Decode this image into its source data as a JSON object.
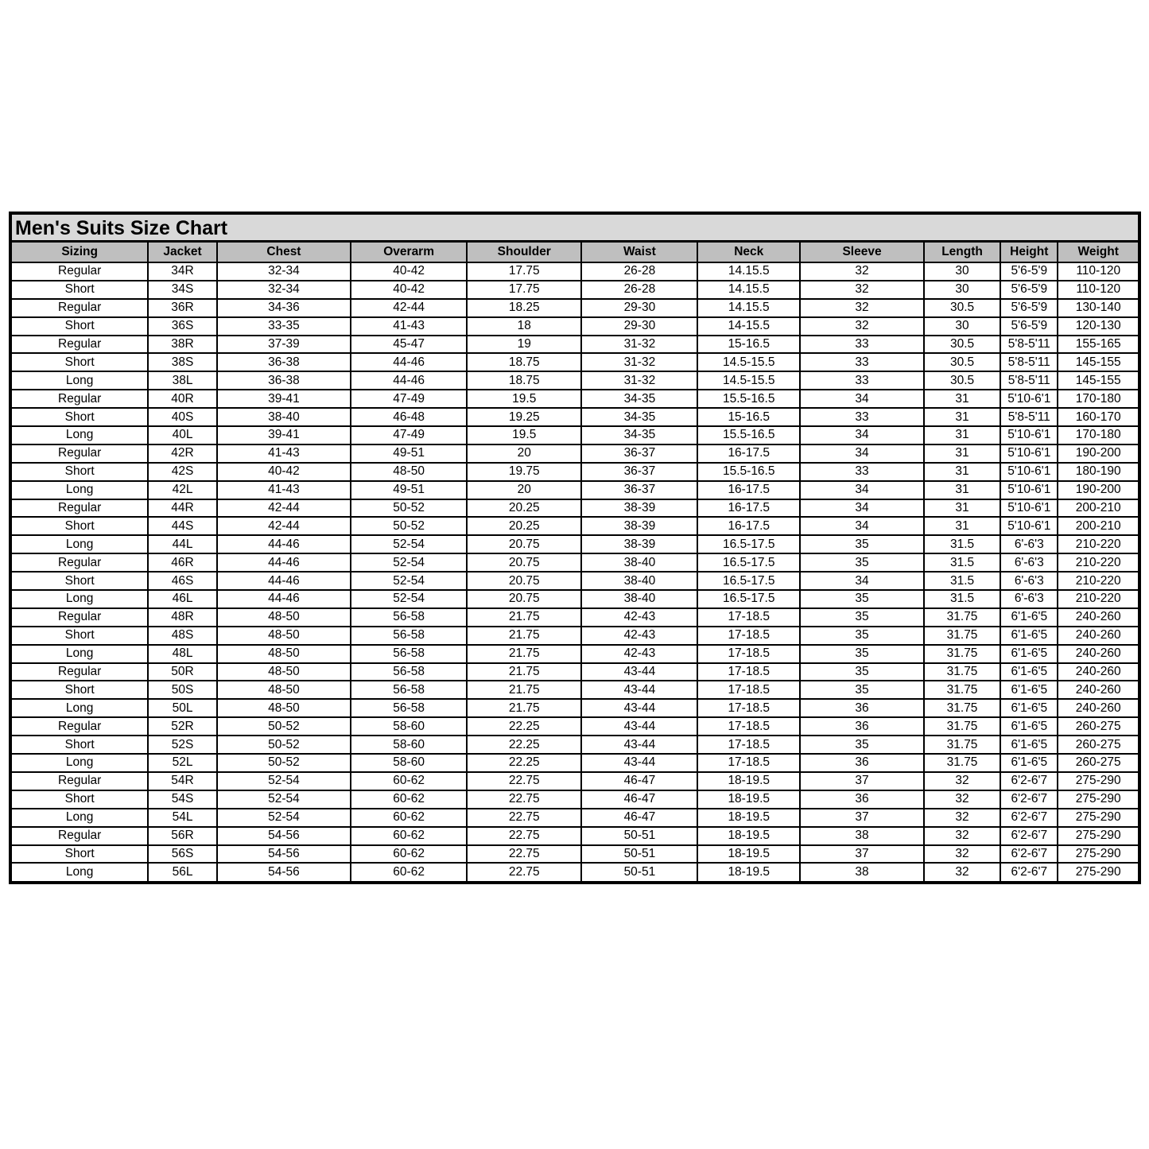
{
  "title": "Men's Suits Size Chart",
  "colors": {
    "title_bg": "#d9d9d9",
    "header_bg": "#bfbfbf",
    "cell_bg": "#ffffff",
    "border": "#000000",
    "text": "#000000"
  },
  "table": {
    "columns": [
      {
        "key": "sizing",
        "label": "Sizing"
      },
      {
        "key": "jacket",
        "label": "Jacket"
      },
      {
        "key": "chest",
        "label": "Chest"
      },
      {
        "key": "overarm",
        "label": "Overarm"
      },
      {
        "key": "shoulder",
        "label": "Shoulder"
      },
      {
        "key": "waist",
        "label": "Waist"
      },
      {
        "key": "neck",
        "label": "Neck"
      },
      {
        "key": "sleeve",
        "label": "Sleeve"
      },
      {
        "key": "length",
        "label": "Length"
      },
      {
        "key": "height",
        "label": "Height"
      },
      {
        "key": "weight",
        "label": "Weight"
      }
    ],
    "rows": [
      [
        "Regular",
        "34R",
        "32-34",
        "40-42",
        "17.75",
        "26-28",
        "14.15.5",
        "32",
        "30",
        "5'6-5'9",
        "110-120"
      ],
      [
        "Short",
        "34S",
        "32-34",
        "40-42",
        "17.75",
        "26-28",
        "14.15.5",
        "32",
        "30",
        "5'6-5'9",
        "110-120"
      ],
      [
        "Regular",
        "36R",
        "34-36",
        "42-44",
        "18.25",
        "29-30",
        "14.15.5",
        "32",
        "30.5",
        "5'6-5'9",
        "130-140"
      ],
      [
        "Short",
        "36S",
        "33-35",
        "41-43",
        "18",
        "29-30",
        "14-15.5",
        "32",
        "30",
        "5'6-5'9",
        "120-130"
      ],
      [
        "Regular",
        "38R",
        "37-39",
        "45-47",
        "19",
        "31-32",
        "15-16.5",
        "33",
        "30.5",
        "5'8-5'11",
        "155-165"
      ],
      [
        "Short",
        "38S",
        "36-38",
        "44-46",
        "18.75",
        "31-32",
        "14.5-15.5",
        "33",
        "30.5",
        "5'8-5'11",
        "145-155"
      ],
      [
        "Long",
        "38L",
        "36-38",
        "44-46",
        "18.75",
        "31-32",
        "14.5-15.5",
        "33",
        "30.5",
        "5'8-5'11",
        "145-155"
      ],
      [
        "Regular",
        "40R",
        "39-41",
        "47-49",
        "19.5",
        "34-35",
        "15.5-16.5",
        "34",
        "31",
        "5'10-6'1",
        "170-180"
      ],
      [
        "Short",
        "40S",
        "38-40",
        "46-48",
        "19.25",
        "34-35",
        "15-16.5",
        "33",
        "31",
        "5'8-5'11",
        "160-170"
      ],
      [
        "Long",
        "40L",
        "39-41",
        "47-49",
        "19.5",
        "34-35",
        "15.5-16.5",
        "34",
        "31",
        "5'10-6'1",
        "170-180"
      ],
      [
        "Regular",
        "42R",
        "41-43",
        "49-51",
        "20",
        "36-37",
        "16-17.5",
        "34",
        "31",
        "5'10-6'1",
        "190-200"
      ],
      [
        "Short",
        "42S",
        "40-42",
        "48-50",
        "19.75",
        "36-37",
        "15.5-16.5",
        "33",
        "31",
        "5'10-6'1",
        "180-190"
      ],
      [
        "Long",
        "42L",
        "41-43",
        "49-51",
        "20",
        "36-37",
        "16-17.5",
        "34",
        "31",
        "5'10-6'1",
        "190-200"
      ],
      [
        "Regular",
        "44R",
        "42-44",
        "50-52",
        "20.25",
        "38-39",
        "16-17.5",
        "34",
        "31",
        "5'10-6'1",
        "200-210"
      ],
      [
        "Short",
        "44S",
        "42-44",
        "50-52",
        "20.25",
        "38-39",
        "16-17.5",
        "34",
        "31",
        "5'10-6'1",
        "200-210"
      ],
      [
        "Long",
        "44L",
        "44-46",
        "52-54",
        "20.75",
        "38-39",
        "16.5-17.5",
        "35",
        "31.5",
        "6'-6'3",
        "210-220"
      ],
      [
        "Regular",
        "46R",
        "44-46",
        "52-54",
        "20.75",
        "38-40",
        "16.5-17.5",
        "35",
        "31.5",
        "6'-6'3",
        "210-220"
      ],
      [
        "Short",
        "46S",
        "44-46",
        "52-54",
        "20.75",
        "38-40",
        "16.5-17.5",
        "34",
        "31.5",
        "6'-6'3",
        "210-220"
      ],
      [
        "Long",
        "46L",
        "44-46",
        "52-54",
        "20.75",
        "38-40",
        "16.5-17.5",
        "35",
        "31.5",
        "6'-6'3",
        "210-220"
      ],
      [
        "Regular",
        "48R",
        "48-50",
        "56-58",
        "21.75",
        "42-43",
        "17-18.5",
        "35",
        "31.75",
        "6'1-6'5",
        "240-260"
      ],
      [
        "Short",
        "48S",
        "48-50",
        "56-58",
        "21.75",
        "42-43",
        "17-18.5",
        "35",
        "31.75",
        "6'1-6'5",
        "240-260"
      ],
      [
        "Long",
        "48L",
        "48-50",
        "56-58",
        "21.75",
        "42-43",
        "17-18.5",
        "35",
        "31.75",
        "6'1-6'5",
        "240-260"
      ],
      [
        "Regular",
        "50R",
        "48-50",
        "56-58",
        "21.75",
        "43-44",
        "17-18.5",
        "35",
        "31.75",
        "6'1-6'5",
        "240-260"
      ],
      [
        "Short",
        "50S",
        "48-50",
        "56-58",
        "21.75",
        "43-44",
        "17-18.5",
        "35",
        "31.75",
        "6'1-6'5",
        "240-260"
      ],
      [
        "Long",
        "50L",
        "48-50",
        "56-58",
        "21.75",
        "43-44",
        "17-18.5",
        "36",
        "31.75",
        "6'1-6'5",
        "240-260"
      ],
      [
        "Regular",
        "52R",
        "50-52",
        "58-60",
        "22.25",
        "43-44",
        "17-18.5",
        "36",
        "31.75",
        "6'1-6'5",
        "260-275"
      ],
      [
        "Short",
        "52S",
        "50-52",
        "58-60",
        "22.25",
        "43-44",
        "17-18.5",
        "35",
        "31.75",
        "6'1-6'5",
        "260-275"
      ],
      [
        "Long",
        "52L",
        "50-52",
        "58-60",
        "22.25",
        "43-44",
        "17-18.5",
        "36",
        "31.75",
        "6'1-6'5",
        "260-275"
      ],
      [
        "Regular",
        "54R",
        "52-54",
        "60-62",
        "22.75",
        "46-47",
        "18-19.5",
        "37",
        "32",
        "6'2-6'7",
        "275-290"
      ],
      [
        "Short",
        "54S",
        "52-54",
        "60-62",
        "22.75",
        "46-47",
        "18-19.5",
        "36",
        "32",
        "6'2-6'7",
        "275-290"
      ],
      [
        "Long",
        "54L",
        "52-54",
        "60-62",
        "22.75",
        "46-47",
        "18-19.5",
        "37",
        "32",
        "6'2-6'7",
        "275-290"
      ],
      [
        "Regular",
        "56R",
        "54-56",
        "60-62",
        "22.75",
        "50-51",
        "18-19.5",
        "38",
        "32",
        "6'2-6'7",
        "275-290"
      ],
      [
        "Short",
        "56S",
        "54-56",
        "60-62",
        "22.75",
        "50-51",
        "18-19.5",
        "37",
        "32",
        "6'2-6'7",
        "275-290"
      ],
      [
        "Long",
        "56L",
        "54-56",
        "60-62",
        "22.75",
        "50-51",
        "18-19.5",
        "38",
        "32",
        "6'2-6'7",
        "275-290"
      ]
    ]
  }
}
